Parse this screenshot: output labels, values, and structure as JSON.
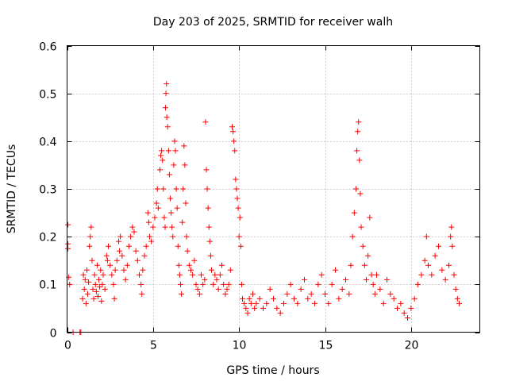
{
  "chart_data": {
    "type": "scatter",
    "title": "Day 203 of 2025, SRMTID for receiver walh",
    "xlabel": "GPS time / hours",
    "ylabel": "SRMTID / TECUs",
    "xlim": [
      0,
      24
    ],
    "ylim": [
      0,
      0.6
    ],
    "x_ticks": [
      0,
      5,
      10,
      15,
      20
    ],
    "x_tick_labels": [
      "0",
      "5",
      "10",
      "15",
      "20"
    ],
    "y_ticks": [
      0,
      0.1,
      0.2,
      0.3,
      0.4,
      0.5,
      0.6
    ],
    "y_tick_labels": [
      "0",
      "0.1",
      "0.2",
      "0.3",
      "0.4",
      "0.5",
      "0.6"
    ],
    "grid": true,
    "marker": "plus",
    "color": "#ff0000",
    "series": [
      {
        "name": "SRMTID",
        "points": [
          [
            0.05,
            0.225
          ],
          [
            0.05,
            0.185
          ],
          [
            0.05,
            0.175
          ],
          [
            0.1,
            0.115
          ],
          [
            0.15,
            0.1
          ],
          [
            0.35,
            0.0
          ],
          [
            0.75,
            0.0
          ],
          [
            0.8,
            0.0
          ],
          [
            0.9,
            0.07
          ],
          [
            0.95,
            0.12
          ],
          [
            1.0,
            0.09
          ],
          [
            1.05,
            0.11
          ],
          [
            1.1,
            0.06
          ],
          [
            1.15,
            0.13
          ],
          [
            1.2,
            0.08
          ],
          [
            1.25,
            0.105
          ],
          [
            1.3,
            0.18
          ],
          [
            1.35,
            0.2
          ],
          [
            1.4,
            0.22
          ],
          [
            1.45,
            0.15
          ],
          [
            1.5,
            0.09
          ],
          [
            1.55,
            0.07
          ],
          [
            1.6,
            0.12
          ],
          [
            1.65,
            0.1
          ],
          [
            1.7,
            0.085
          ],
          [
            1.75,
            0.14
          ],
          [
            1.8,
            0.075
          ],
          [
            1.85,
            0.11
          ],
          [
            1.9,
            0.095
          ],
          [
            1.95,
            0.13
          ],
          [
            2.0,
            0.065
          ],
          [
            2.05,
            0.1
          ],
          [
            2.1,
            0.12
          ],
          [
            2.2,
            0.09
          ],
          [
            2.3,
            0.16
          ],
          [
            2.35,
            0.15
          ],
          [
            2.4,
            0.18
          ],
          [
            2.5,
            0.14
          ],
          [
            2.6,
            0.12
          ],
          [
            2.7,
            0.1
          ],
          [
            2.75,
            0.07
          ],
          [
            2.8,
            0.13
          ],
          [
            2.9,
            0.15
          ],
          [
            3.0,
            0.19
          ],
          [
            3.05,
            0.17
          ],
          [
            3.1,
            0.2
          ],
          [
            3.2,
            0.16
          ],
          [
            3.3,
            0.13
          ],
          [
            3.4,
            0.11
          ],
          [
            3.5,
            0.14
          ],
          [
            3.6,
            0.18
          ],
          [
            3.7,
            0.2
          ],
          [
            3.8,
            0.22
          ],
          [
            3.9,
            0.21
          ],
          [
            4.0,
            0.17
          ],
          [
            4.1,
            0.15
          ],
          [
            4.2,
            0.12
          ],
          [
            4.3,
            0.1
          ],
          [
            4.35,
            0.08
          ],
          [
            4.4,
            0.13
          ],
          [
            4.5,
            0.16
          ],
          [
            4.6,
            0.18
          ],
          [
            4.7,
            0.25
          ],
          [
            4.75,
            0.23
          ],
          [
            4.8,
            0.2
          ],
          [
            4.9,
            0.19
          ],
          [
            5.0,
            0.22
          ],
          [
            5.1,
            0.24
          ],
          [
            5.2,
            0.27
          ],
          [
            5.25,
            0.3
          ],
          [
            5.3,
            0.26
          ],
          [
            5.4,
            0.34
          ],
          [
            5.45,
            0.37
          ],
          [
            5.5,
            0.38
          ],
          [
            5.55,
            0.36
          ],
          [
            5.6,
            0.3
          ],
          [
            5.65,
            0.24
          ],
          [
            5.7,
            0.22
          ],
          [
            5.72,
            0.47
          ],
          [
            5.75,
            0.5
          ],
          [
            5.78,
            0.52
          ],
          [
            5.8,
            0.45
          ],
          [
            5.85,
            0.43
          ],
          [
            5.9,
            0.38
          ],
          [
            5.95,
            0.33
          ],
          [
            6.0,
            0.28
          ],
          [
            6.05,
            0.25
          ],
          [
            6.1,
            0.22
          ],
          [
            6.15,
            0.2
          ],
          [
            6.2,
            0.35
          ],
          [
            6.25,
            0.4
          ],
          [
            6.3,
            0.38
          ],
          [
            6.35,
            0.3
          ],
          [
            6.4,
            0.26
          ],
          [
            6.45,
            0.18
          ],
          [
            6.5,
            0.14
          ],
          [
            6.55,
            0.12
          ],
          [
            6.6,
            0.1
          ],
          [
            6.65,
            0.08
          ],
          [
            6.7,
            0.23
          ],
          [
            6.75,
            0.3
          ],
          [
            6.8,
            0.39
          ],
          [
            6.85,
            0.35
          ],
          [
            6.9,
            0.27
          ],
          [
            6.95,
            0.2
          ],
          [
            7.0,
            0.17
          ],
          [
            7.1,
            0.14
          ],
          [
            7.2,
            0.13
          ],
          [
            7.3,
            0.12
          ],
          [
            7.4,
            0.15
          ],
          [
            7.5,
            0.1
          ],
          [
            7.6,
            0.09
          ],
          [
            7.7,
            0.08
          ],
          [
            7.8,
            0.12
          ],
          [
            7.9,
            0.1
          ],
          [
            8.0,
            0.11
          ],
          [
            8.05,
            0.44
          ],
          [
            8.1,
            0.34
          ],
          [
            8.15,
            0.3
          ],
          [
            8.2,
            0.26
          ],
          [
            8.25,
            0.22
          ],
          [
            8.3,
            0.19
          ],
          [
            8.35,
            0.16
          ],
          [
            8.4,
            0.13
          ],
          [
            8.5,
            0.1
          ],
          [
            8.6,
            0.12
          ],
          [
            8.7,
            0.11
          ],
          [
            8.8,
            0.09
          ],
          [
            8.9,
            0.12
          ],
          [
            9.0,
            0.14
          ],
          [
            9.1,
            0.1
          ],
          [
            9.2,
            0.08
          ],
          [
            9.3,
            0.09
          ],
          [
            9.4,
            0.1
          ],
          [
            9.5,
            0.13
          ],
          [
            9.6,
            0.43
          ],
          [
            9.65,
            0.42
          ],
          [
            9.7,
            0.4
          ],
          [
            9.75,
            0.38
          ],
          [
            9.8,
            0.32
          ],
          [
            9.85,
            0.3
          ],
          [
            9.9,
            0.28
          ],
          [
            9.95,
            0.26
          ],
          [
            10.0,
            0.2
          ],
          [
            10.05,
            0.24
          ],
          [
            10.1,
            0.18
          ],
          [
            10.15,
            0.1
          ],
          [
            10.2,
            0.07
          ],
          [
            10.3,
            0.06
          ],
          [
            10.4,
            0.05
          ],
          [
            10.5,
            0.04
          ],
          [
            10.6,
            0.07
          ],
          [
            10.7,
            0.06
          ],
          [
            10.8,
            0.08
          ],
          [
            10.9,
            0.05
          ],
          [
            11.0,
            0.06
          ],
          [
            11.2,
            0.07
          ],
          [
            11.4,
            0.05
          ],
          [
            11.6,
            0.06
          ],
          [
            11.8,
            0.09
          ],
          [
            12.0,
            0.07
          ],
          [
            12.2,
            0.05
          ],
          [
            12.4,
            0.04
          ],
          [
            12.6,
            0.06
          ],
          [
            12.8,
            0.08
          ],
          [
            13.0,
            0.1
          ],
          [
            13.2,
            0.07
          ],
          [
            13.4,
            0.06
          ],
          [
            13.6,
            0.09
          ],
          [
            13.8,
            0.11
          ],
          [
            14.0,
            0.07
          ],
          [
            14.2,
            0.08
          ],
          [
            14.4,
            0.06
          ],
          [
            14.6,
            0.1
          ],
          [
            14.8,
            0.12
          ],
          [
            15.0,
            0.08
          ],
          [
            15.2,
            0.06
          ],
          [
            15.4,
            0.1
          ],
          [
            15.6,
            0.13
          ],
          [
            15.8,
            0.07
          ],
          [
            16.0,
            0.09
          ],
          [
            16.2,
            0.11
          ],
          [
            16.4,
            0.08
          ],
          [
            16.5,
            0.14
          ],
          [
            16.6,
            0.2
          ],
          [
            16.7,
            0.25
          ],
          [
            16.8,
            0.3
          ],
          [
            16.85,
            0.38
          ],
          [
            16.9,
            0.42
          ],
          [
            16.95,
            0.44
          ],
          [
            17.0,
            0.36
          ],
          [
            17.05,
            0.29
          ],
          [
            17.1,
            0.22
          ],
          [
            17.2,
            0.18
          ],
          [
            17.3,
            0.14
          ],
          [
            17.4,
            0.11
          ],
          [
            17.5,
            0.16
          ],
          [
            17.6,
            0.24
          ],
          [
            17.7,
            0.12
          ],
          [
            17.8,
            0.1
          ],
          [
            17.9,
            0.08
          ],
          [
            18.0,
            0.12
          ],
          [
            18.2,
            0.09
          ],
          [
            18.4,
            0.06
          ],
          [
            18.6,
            0.11
          ],
          [
            18.8,
            0.08
          ],
          [
            19.0,
            0.07
          ],
          [
            19.2,
            0.05
          ],
          [
            19.4,
            0.06
          ],
          [
            19.6,
            0.04
          ],
          [
            19.8,
            0.03
          ],
          [
            20.0,
            0.05
          ],
          [
            20.2,
            0.07
          ],
          [
            20.4,
            0.1
          ],
          [
            20.6,
            0.12
          ],
          [
            20.8,
            0.15
          ],
          [
            20.9,
            0.2
          ],
          [
            21.0,
            0.14
          ],
          [
            21.2,
            0.12
          ],
          [
            21.4,
            0.16
          ],
          [
            21.6,
            0.18
          ],
          [
            21.8,
            0.13
          ],
          [
            22.0,
            0.11
          ],
          [
            22.2,
            0.14
          ],
          [
            22.3,
            0.2
          ],
          [
            22.35,
            0.22
          ],
          [
            22.4,
            0.18
          ],
          [
            22.5,
            0.12
          ],
          [
            22.6,
            0.09
          ],
          [
            22.7,
            0.07
          ],
          [
            22.8,
            0.06
          ]
        ]
      }
    ]
  }
}
